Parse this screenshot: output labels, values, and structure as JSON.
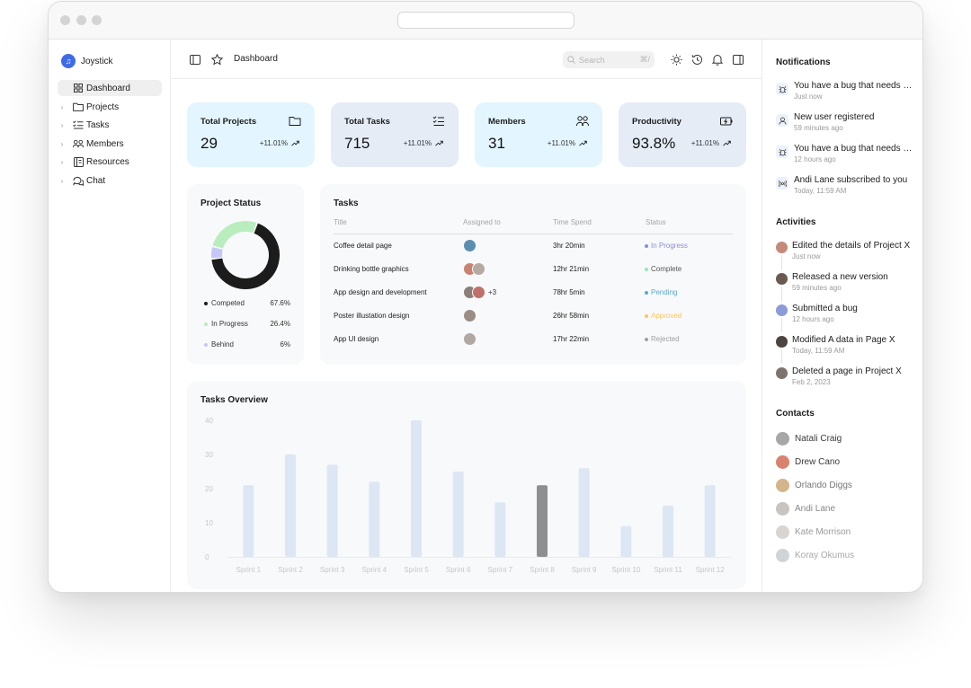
{
  "app": {
    "name": "Joystick"
  },
  "sidebar": {
    "items": [
      {
        "label": "Dashboard",
        "icon": "grid-icon",
        "active": true
      },
      {
        "label": "Projects",
        "icon": "folder-icon"
      },
      {
        "label": "Tasks",
        "icon": "checklist-icon"
      },
      {
        "label": "Members",
        "icon": "users-icon"
      },
      {
        "label": "Resources",
        "icon": "book-icon"
      },
      {
        "label": "Chat",
        "icon": "chat-icon"
      }
    ]
  },
  "topbar": {
    "breadcrumb": "Dashboard",
    "search_placeholder": "Search",
    "search_shortcut": "⌘/"
  },
  "stats": [
    {
      "label": "Total Projects",
      "value": "29",
      "change": "+11.01%",
      "color": "#e3f5ff"
    },
    {
      "label": "Total Tasks",
      "value": "715",
      "change": "+11.01%",
      "color": "#e5ecf6"
    },
    {
      "label": "Members",
      "value": "31",
      "change": "+11.01%",
      "color": "#e3f5ff"
    },
    {
      "label": "Productivity",
      "value": "93.8%",
      "change": "+11.01%",
      "color": "#e5ecf6"
    }
  ],
  "project_status": {
    "title": "Project Status",
    "items": [
      {
        "label": "Competed",
        "pct": "67.6%",
        "value": 67.6,
        "color": "#1c1c1c"
      },
      {
        "label": "In Progress",
        "pct": "26.4%",
        "value": 26.4,
        "color": "#baedbd"
      },
      {
        "label": "Behind",
        "pct": "6%",
        "value": 6,
        "color": "#c6c7f8"
      }
    ]
  },
  "tasks": {
    "title": "Tasks",
    "columns": [
      "Title",
      "Assigned to",
      "Time Spend",
      "Status"
    ],
    "rows": [
      {
        "title": "Coffee detail page",
        "avatars": [
          "#5b8fb0"
        ],
        "more": "",
        "time": "3hr 20min",
        "status": "In Progress",
        "status_color": "#8a8cd9"
      },
      {
        "title": "Drinking bottle graphics",
        "avatars": [
          "#c9826f",
          "#b6a9a2"
        ],
        "more": "",
        "time": "12hr 21min",
        "status": "Complete",
        "status_color": "#94e9b8"
      },
      {
        "title": "App design and development",
        "avatars": [
          "#8a7e76",
          "#c0706a"
        ],
        "more": "+3",
        "time": "78hr 5min",
        "status": "Pending",
        "status_color": "#59a8d4"
      },
      {
        "title": "Poster illustation design",
        "avatars": [
          "#9c8c86"
        ],
        "more": "",
        "time": "26hr 58min",
        "status": "Approved",
        "status_color": "#ffc555"
      },
      {
        "title": "App UI design",
        "avatars": [
          "#b0a8a4"
        ],
        "more": "",
        "time": "17hr 22min",
        "status": "Rejected",
        "status_color": "#a0a0a0"
      }
    ]
  },
  "chart_data": {
    "type": "bar",
    "title": "Tasks Overview",
    "categories": [
      "Sprint 1",
      "Sprint 2",
      "Sprint 3",
      "Sprint 4",
      "Sprint 5",
      "Sprint 6",
      "Sprint 7",
      "Sprint 8",
      "Sprint 9",
      "Sprint 10",
      "Sprint 11",
      "Sprint 12"
    ],
    "values": [
      21,
      30,
      27,
      22,
      40,
      25,
      16,
      21,
      26,
      9,
      15,
      21
    ],
    "highlight_index": 7,
    "yticks": [
      "40",
      "30",
      "20",
      "10",
      "0"
    ],
    "ylim": [
      0,
      40
    ],
    "grid": false
  },
  "notifications": {
    "title": "Notifications",
    "items": [
      {
        "text": "You have a bug that needs to be fixed",
        "time": "Just now",
        "icon": "bug-icon"
      },
      {
        "text": "New user registered",
        "time": "59 minutes ago",
        "icon": "user-icon"
      },
      {
        "text": "You have a bug that needs to be fixed",
        "time": "12 hours ago",
        "icon": "bug-icon"
      },
      {
        "text": "Andi Lane subscribed to you",
        "time": "Today, 11:59 AM",
        "icon": "broadcast-icon"
      }
    ]
  },
  "activities": {
    "title": "Activities",
    "items": [
      {
        "text": "Edited the details of Project X",
        "time": "Just now",
        "color": "#c48a7a"
      },
      {
        "text": "Released a new version",
        "time": "59 minutes ago",
        "color": "#6b5a52"
      },
      {
        "text": "Submitted a bug",
        "time": "12 hours ago",
        "color": "#8d9bd6"
      },
      {
        "text": "Modified A data in Page X",
        "time": "Today, 11:59 AM",
        "color": "#4b4440"
      },
      {
        "text": "Deleted a page in Project X",
        "time": "Feb 2, 2023",
        "color": "#7d7470"
      }
    ]
  },
  "contacts": {
    "title": "Contacts",
    "items": [
      {
        "name": "Natali Craig",
        "color": "#a7a7a7"
      },
      {
        "name": "Drew Cano",
        "color": "#d9826f"
      },
      {
        "name": "Orlando Diggs",
        "color": "#d4b48a"
      },
      {
        "name": "Andi Lane",
        "color": "#c9c4c0"
      },
      {
        "name": "Kate Morrison",
        "color": "#d8d4d2"
      },
      {
        "name": "Koray Okumus",
        "color": "#d0d4d8"
      }
    ]
  }
}
